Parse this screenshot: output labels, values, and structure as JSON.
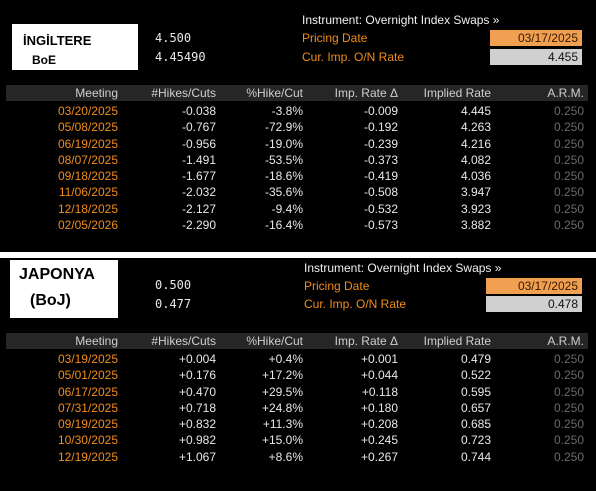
{
  "boe": {
    "label_line1": "İNGİLTERE",
    "label_line2": "BoE",
    "rate_value": "4.500",
    "imp_value": "4.45490",
    "instrument": "Instrument: Overnight Index Swaps »",
    "pricing_label": "Pricing Date",
    "pricing_date": "03/17/2025",
    "cur_label": "Cur. Imp. O/N Rate",
    "cur_rate": "4.455",
    "headers": [
      "Meeting",
      "#Hikes/Cuts",
      "%Hike/Cut",
      "Imp. Rate Δ",
      "Implied Rate",
      "A.R.M."
    ],
    "rows": [
      [
        "03/20/2025",
        "-0.038",
        "-3.8%",
        "-0.009",
        "4.445",
        "0.250"
      ],
      [
        "05/08/2025",
        "-0.767",
        "-72.9%",
        "-0.192",
        "4.263",
        "0.250"
      ],
      [
        "06/19/2025",
        "-0.956",
        "-19.0%",
        "-0.239",
        "4.216",
        "0.250"
      ],
      [
        "08/07/2025",
        "-1.491",
        "-53.5%",
        "-0.373",
        "4.082",
        "0.250"
      ],
      [
        "09/18/2025",
        "-1.677",
        "-18.6%",
        "-0.419",
        "4.036",
        "0.250"
      ],
      [
        "11/06/2025",
        "-2.032",
        "-35.6%",
        "-0.508",
        "3.947",
        "0.250"
      ],
      [
        "12/18/2025",
        "-2.127",
        "-9.4%",
        "-0.532",
        "3.923",
        "0.250"
      ],
      [
        "02/05/2026",
        "-2.290",
        "-16.4%",
        "-0.573",
        "3.882",
        "0.250"
      ]
    ]
  },
  "boj": {
    "label_line1": "JAPONYA",
    "label_line2": "(BoJ)",
    "rate_value": "0.500",
    "imp_value": "0.477",
    "instrument": "Instrument: Overnight Index Swaps »",
    "pricing_label": "Pricing Date",
    "pricing_date": "03/17/2025",
    "cur_label": "Cur. Imp. O/N Rate",
    "cur_rate": "0.478",
    "headers": [
      "Meeting",
      "#Hikes/Cuts",
      "%Hike/Cut",
      "Imp. Rate Δ",
      "Implied Rate",
      "A.R.M."
    ],
    "rows": [
      [
        "03/19/2025",
        "+0.004",
        "+0.4%",
        "+0.001",
        "0.479",
        "0.250"
      ],
      [
        "05/01/2025",
        "+0.176",
        "+17.2%",
        "+0.044",
        "0.522",
        "0.250"
      ],
      [
        "06/17/2025",
        "+0.470",
        "+29.5%",
        "+0.118",
        "0.595",
        "0.250"
      ],
      [
        "07/31/2025",
        "+0.718",
        "+24.8%",
        "+0.180",
        "0.657",
        "0.250"
      ],
      [
        "09/19/2025",
        "+0.832",
        "+11.3%",
        "+0.208",
        "0.685",
        "0.250"
      ],
      [
        "10/30/2025",
        "+0.982",
        "+15.0%",
        "+0.245",
        "0.723",
        "0.250"
      ],
      [
        "12/19/2025",
        "+1.067",
        "+8.6%",
        "+0.267",
        "0.744",
        "0.250"
      ]
    ]
  }
}
